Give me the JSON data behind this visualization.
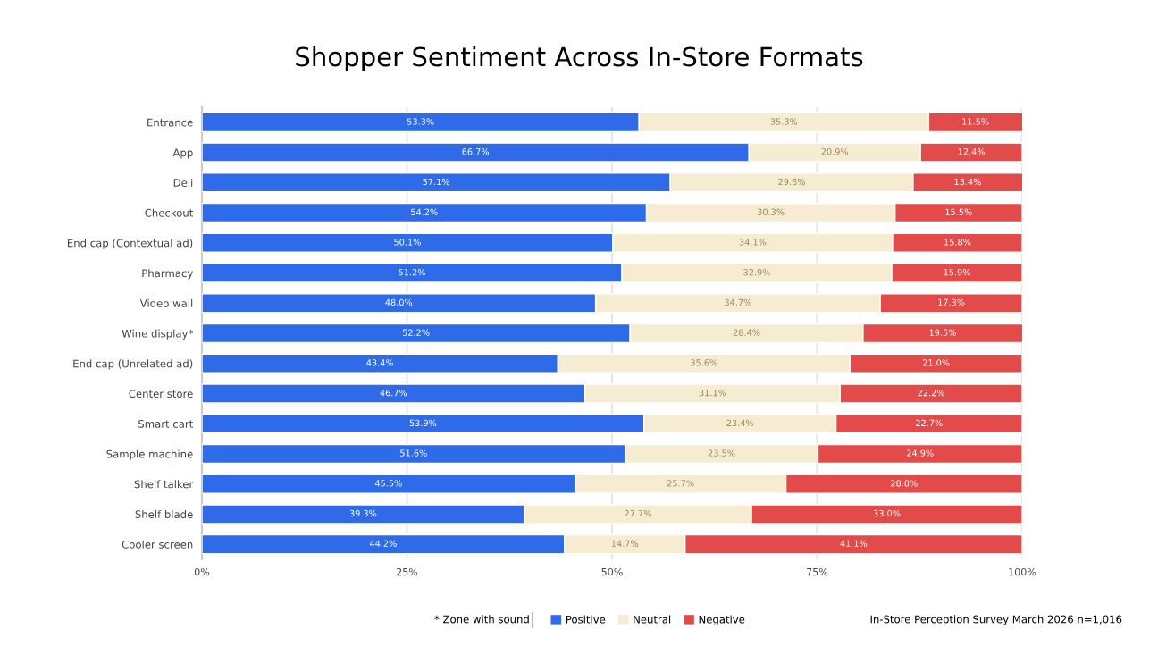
{
  "chart_data": {
    "type": "bar",
    "orientation": "horizontal",
    "stacked": true,
    "title": "Shopper Sentiment Across In-Store Formats",
    "categories": [
      "Entrance",
      "App",
      "Deli",
      "Checkout",
      "End cap (Contextual ad)",
      "Pharmacy",
      "Video wall",
      "Wine display*",
      "End cap (Unrelated ad)",
      "Center store",
      "Smart cart",
      "Sample machine",
      "Shelf talker",
      "Shelf blade",
      "Cooler screen"
    ],
    "series": [
      {
        "name": "Positive",
        "color": "#2f6be8",
        "values": [
          53.3,
          66.7,
          57.1,
          54.2,
          50.1,
          51.2,
          48.0,
          52.2,
          43.4,
          46.7,
          53.9,
          51.6,
          45.5,
          39.3,
          44.2
        ],
        "value_labels": [
          "53.3%",
          "66.7%",
          "57.1%",
          "54.2%",
          "50.1%",
          "51.2%",
          "48.0%",
          "52.2%",
          "43.4%",
          "46.7%",
          "53.9%",
          "51.6%",
          "45.5%",
          "39.3%",
          "44.2%"
        ]
      },
      {
        "name": "Neutral",
        "color": "#f5ecd2",
        "values": [
          35.3,
          20.9,
          29.6,
          30.3,
          34.1,
          32.9,
          34.7,
          28.4,
          35.6,
          31.1,
          23.4,
          23.5,
          25.7,
          27.7,
          14.7
        ],
        "value_labels": [
          "35.3%",
          "20.9%",
          "29.6%",
          "30.3%",
          "34.1%",
          "32.9%",
          "34.7%",
          "28.4%",
          "35.6%",
          "31.1%",
          "23.4%",
          "23.5%",
          "25.7%",
          "27.7%",
          "14.7%"
        ]
      },
      {
        "name": "Negative",
        "color": "#e34b4b",
        "values": [
          11.5,
          12.4,
          13.4,
          15.5,
          15.8,
          15.9,
          17.3,
          19.5,
          21.0,
          22.2,
          22.7,
          24.9,
          28.8,
          33.0,
          41.1
        ],
        "value_labels": [
          "11.5%",
          "12.4%",
          "13.4%",
          "15.5%",
          "15.8%",
          "15.9%",
          "17.3%",
          "19.5%",
          "21.0%",
          "22.2%",
          "22.7%",
          "24.9%",
          "28.8%",
          "33.0%",
          "41.1%"
        ]
      }
    ],
    "xlim": [
      0,
      100
    ],
    "xticks": [
      {
        "value": 0,
        "label": "0%"
      },
      {
        "value": 25,
        "label": "25%"
      },
      {
        "value": 50,
        "label": "50%"
      },
      {
        "value": 75,
        "label": "75%"
      },
      {
        "value": 100,
        "label": "100%"
      }
    ],
    "grid": "x",
    "legend": "bottom",
    "annotations": [
      "* Zone with sound",
      "In-Store Perception Survey March 2026 n=1,016"
    ]
  }
}
